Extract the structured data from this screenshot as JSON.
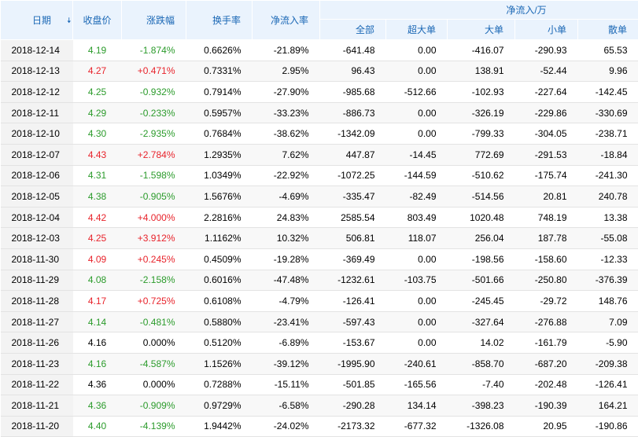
{
  "columns": {
    "date": "日期",
    "close": "收盘价",
    "change": "涨跌幅",
    "turnover": "换手率",
    "net_ratio": "净流入率",
    "group": "净流入/万",
    "all": "全部",
    "super": "超大单",
    "big": "大单",
    "small": "小单",
    "retail": "散单"
  },
  "sort_icon": "sort-down-arrow-icon",
  "colors": {
    "up": "#e8232b",
    "down": "#2b9b2b",
    "header_bg": "#eaf3fd",
    "header_text": "#1a67b5"
  },
  "rows": [
    {
      "date": "2018-12-14",
      "close": "4.19",
      "change": "-1.874%",
      "dir": "down",
      "turnover": "0.6626%",
      "net_ratio": "-21.89%",
      "all": "-641.48",
      "super": "0.00",
      "big": "-416.07",
      "small": "-290.93",
      "retail": "65.53"
    },
    {
      "date": "2018-12-13",
      "close": "4.27",
      "change": "+0.471%",
      "dir": "up",
      "turnover": "0.7331%",
      "net_ratio": "2.95%",
      "all": "96.43",
      "super": "0.00",
      "big": "138.91",
      "small": "-52.44",
      "retail": "9.96"
    },
    {
      "date": "2018-12-12",
      "close": "4.25",
      "change": "-0.932%",
      "dir": "down",
      "turnover": "0.7914%",
      "net_ratio": "-27.90%",
      "all": "-985.68",
      "super": "-512.66",
      "big": "-102.93",
      "small": "-227.64",
      "retail": "-142.45"
    },
    {
      "date": "2018-12-11",
      "close": "4.29",
      "change": "-0.233%",
      "dir": "down",
      "turnover": "0.5957%",
      "net_ratio": "-33.23%",
      "all": "-886.73",
      "super": "0.00",
      "big": "-326.19",
      "small": "-229.86",
      "retail": "-330.69"
    },
    {
      "date": "2018-12-10",
      "close": "4.30",
      "change": "-2.935%",
      "dir": "down",
      "turnover": "0.7684%",
      "net_ratio": "-38.62%",
      "all": "-1342.09",
      "super": "0.00",
      "big": "-799.33",
      "small": "-304.05",
      "retail": "-238.71"
    },
    {
      "date": "2018-12-07",
      "close": "4.43",
      "change": "+2.784%",
      "dir": "up",
      "turnover": "1.2935%",
      "net_ratio": "7.62%",
      "all": "447.87",
      "super": "-14.45",
      "big": "772.69",
      "small": "-291.53",
      "retail": "-18.84"
    },
    {
      "date": "2018-12-06",
      "close": "4.31",
      "change": "-1.598%",
      "dir": "down",
      "turnover": "1.0349%",
      "net_ratio": "-22.92%",
      "all": "-1072.25",
      "super": "-144.59",
      "big": "-510.62",
      "small": "-175.74",
      "retail": "-241.30"
    },
    {
      "date": "2018-12-05",
      "close": "4.38",
      "change": "-0.905%",
      "dir": "down",
      "turnover": "1.5676%",
      "net_ratio": "-4.69%",
      "all": "-335.47",
      "super": "-82.49",
      "big": "-514.56",
      "small": "20.81",
      "retail": "240.78"
    },
    {
      "date": "2018-12-04",
      "close": "4.42",
      "change": "+4.000%",
      "dir": "up",
      "turnover": "2.2816%",
      "net_ratio": "24.83%",
      "all": "2585.54",
      "super": "803.49",
      "big": "1020.48",
      "small": "748.19",
      "retail": "13.38"
    },
    {
      "date": "2018-12-03",
      "close": "4.25",
      "change": "+3.912%",
      "dir": "up",
      "turnover": "1.1162%",
      "net_ratio": "10.32%",
      "all": "506.81",
      "super": "118.07",
      "big": "256.04",
      "small": "187.78",
      "retail": "-55.08"
    },
    {
      "date": "2018-11-30",
      "close": "4.09",
      "change": "+0.245%",
      "dir": "up",
      "turnover": "0.4509%",
      "net_ratio": "-19.28%",
      "all": "-369.49",
      "super": "0.00",
      "big": "-198.56",
      "small": "-158.60",
      "retail": "-12.33"
    },
    {
      "date": "2018-11-29",
      "close": "4.08",
      "change": "-2.158%",
      "dir": "down",
      "turnover": "0.6016%",
      "net_ratio": "-47.48%",
      "all": "-1232.61",
      "super": "-103.75",
      "big": "-501.66",
      "small": "-250.80",
      "retail": "-376.39"
    },
    {
      "date": "2018-11-28",
      "close": "4.17",
      "change": "+0.725%",
      "dir": "up",
      "turnover": "0.6108%",
      "net_ratio": "-4.79%",
      "all": "-126.41",
      "super": "0.00",
      "big": "-245.45",
      "small": "-29.72",
      "retail": "148.76"
    },
    {
      "date": "2018-11-27",
      "close": "4.14",
      "change": "-0.481%",
      "dir": "down",
      "turnover": "0.5880%",
      "net_ratio": "-23.41%",
      "all": "-597.43",
      "super": "0.00",
      "big": "-327.64",
      "small": "-276.88",
      "retail": "7.09"
    },
    {
      "date": "2018-11-26",
      "close": "4.16",
      "change": "0.000%",
      "dir": "flat",
      "turnover": "0.5120%",
      "net_ratio": "-6.89%",
      "all": "-153.67",
      "super": "0.00",
      "big": "14.02",
      "small": "-161.79",
      "retail": "-5.90"
    },
    {
      "date": "2018-11-23",
      "close": "4.16",
      "change": "-4.587%",
      "dir": "down",
      "turnover": "1.1526%",
      "net_ratio": "-39.12%",
      "all": "-1995.90",
      "super": "-240.61",
      "big": "-858.70",
      "small": "-687.20",
      "retail": "-209.38"
    },
    {
      "date": "2018-11-22",
      "close": "4.36",
      "change": "0.000%",
      "dir": "flat",
      "turnover": "0.7288%",
      "net_ratio": "-15.11%",
      "all": "-501.85",
      "super": "-165.56",
      "big": "-7.40",
      "small": "-202.48",
      "retail": "-126.41"
    },
    {
      "date": "2018-11-21",
      "close": "4.36",
      "change": "-0.909%",
      "dir": "down",
      "turnover": "0.9729%",
      "net_ratio": "-6.58%",
      "all": "-290.28",
      "super": "134.14",
      "big": "-398.23",
      "small": "-190.39",
      "retail": "164.21"
    },
    {
      "date": "2018-11-20",
      "close": "4.40",
      "change": "-4.139%",
      "dir": "down",
      "turnover": "1.9442%",
      "net_ratio": "-24.02%",
      "all": "-2173.32",
      "super": "-677.32",
      "big": "-1326.08",
      "small": "20.95",
      "retail": "-190.86"
    }
  ]
}
